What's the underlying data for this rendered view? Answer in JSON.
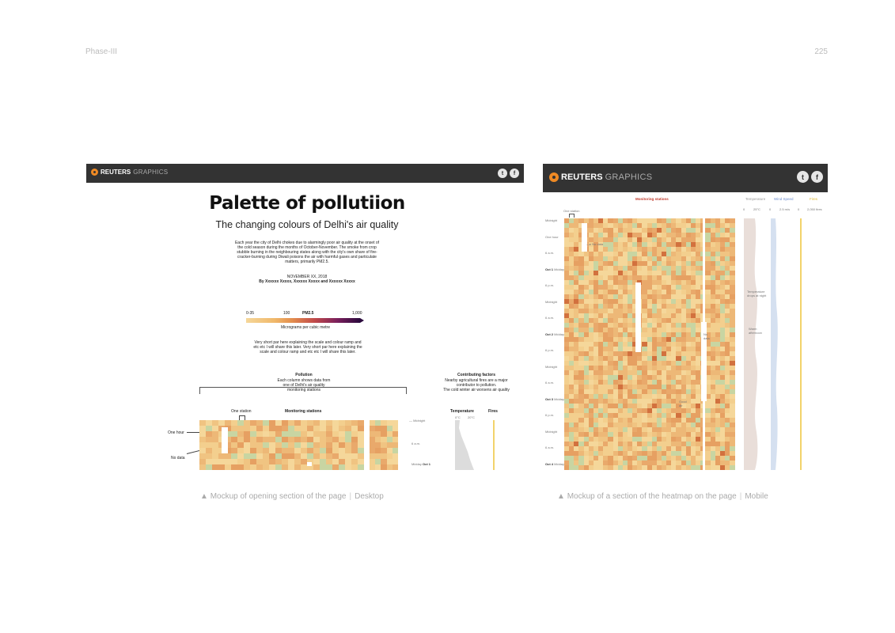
{
  "page": {
    "section": "Phase-III",
    "number": "225"
  },
  "colors": {
    "header_bar": "#333333",
    "logo_mark": "#f08a24",
    "pollution_low": "#f5d79a",
    "pollution_mid": "#e48f4e",
    "pollution_high": "#3b0f4f",
    "clean_air": "#c8d5a2",
    "temperature": "#e9ded9",
    "wind": "#d5e0f0",
    "fires": "#f2d36b"
  },
  "desktop": {
    "brand": {
      "name": "REUTERS",
      "suffix": "GRAPHICS",
      "icons": [
        "twitter-icon",
        "facebook-icon"
      ],
      "twitter_glyph": "t",
      "facebook_glyph": "f"
    },
    "title": "Palette of pollutiion",
    "subtitle": "The changing colours of Delhi's air quality",
    "intro_lines": [
      "Each year the city of Delhi chokes due to alarmingly poor air quality at the onset of",
      "the cold season during the months of October-November. The smoke from crop",
      "stubble burning in the neighbouring states along with the city's own share of fire-",
      "cracker-burning during Diwali poisons the air with harmful gases and particulate",
      "matters, primarily PM2.5."
    ],
    "date": "NOVEMBER XX, 2018",
    "byline": "By Xxxxxx Xxxxx, Xxxxxx Xxxxx and Xxxxxx Xxxxx",
    "scale": {
      "labels": [
        "0-35",
        "100",
        "PM2.5",
        "1,000"
      ],
      "unit": "Micrograms per cubic metre"
    },
    "explain_lines": [
      "Very short par here explaining the scale and colour ramp and",
      "etc etc I will share this later. Very short par here explaining the",
      "scale and colour ramp and etc etc I will share this later."
    ],
    "pollution_heading": "Pollution",
    "pollution_desc": [
      "Each column shows data from",
      "one of Delhi's air quality",
      "monitoring stations"
    ],
    "factors_heading": "Contributing factors",
    "factors_desc": [
      "Nearby agricultural fires are a major",
      "contributor to pollution.",
      "The cold winter air worsens air quality"
    ],
    "one_station": "One station",
    "monitoring_stations": "Monitoring stations",
    "one_hour": "One hour",
    "no_data": "No data",
    "temperature": "Temperature",
    "temp_ticks": [
      "0°C",
      "20°C"
    ],
    "fires": "Fires",
    "time_labels": [
      "Midnight",
      "6 a.m.",
      "Midday"
    ],
    "date_label": "Oct 1"
  },
  "mobile": {
    "brand": {
      "name": "REUTERS",
      "suffix": "GRAPHICS",
      "icons": [
        "twitter-icon",
        "facebook-icon"
      ],
      "twitter_glyph": "t",
      "facebook_glyph": "f"
    },
    "monitoring_stations": "Monitoring stations",
    "one_station": "One station",
    "temperature": "Temperature",
    "wind_speed": "Wind Speed",
    "fires": "Fires",
    "temp_ticks": [
      "0",
      "25°C"
    ],
    "wind_ticks": [
      "0",
      "2.5 m/s"
    ],
    "fire_ticks": [
      "0",
      "2,050 fires"
    ],
    "time_labels": [
      "Midnight",
      "One hour",
      "6 a.m.",
      "Midday",
      "6 p.m.",
      "Midnight",
      "6 a.m.",
      "Midday",
      "6 p.m.",
      "Midnight",
      "6 a.m.",
      "Midday",
      "6 p.m.",
      "Midnight",
      "6 a.m.",
      "Midday"
    ],
    "date_labels": [
      "Oct 1",
      "Oct 2",
      "Oct 3",
      "Oct 4"
    ],
    "no_data": "No data",
    "no_data_col": "No data",
    "good_air": "Good air",
    "temp_note": "Temperature drops at night",
    "warm_note": "Warm afternoon"
  },
  "captions": {
    "desktop": {
      "arrow": "▲",
      "text": "Mockup of opening section of the page",
      "tag": "Desktop"
    },
    "mobile": {
      "arrow": "▲",
      "text": "Mockup of a section of the heatmap on the page",
      "tag": "Mobile"
    }
  }
}
